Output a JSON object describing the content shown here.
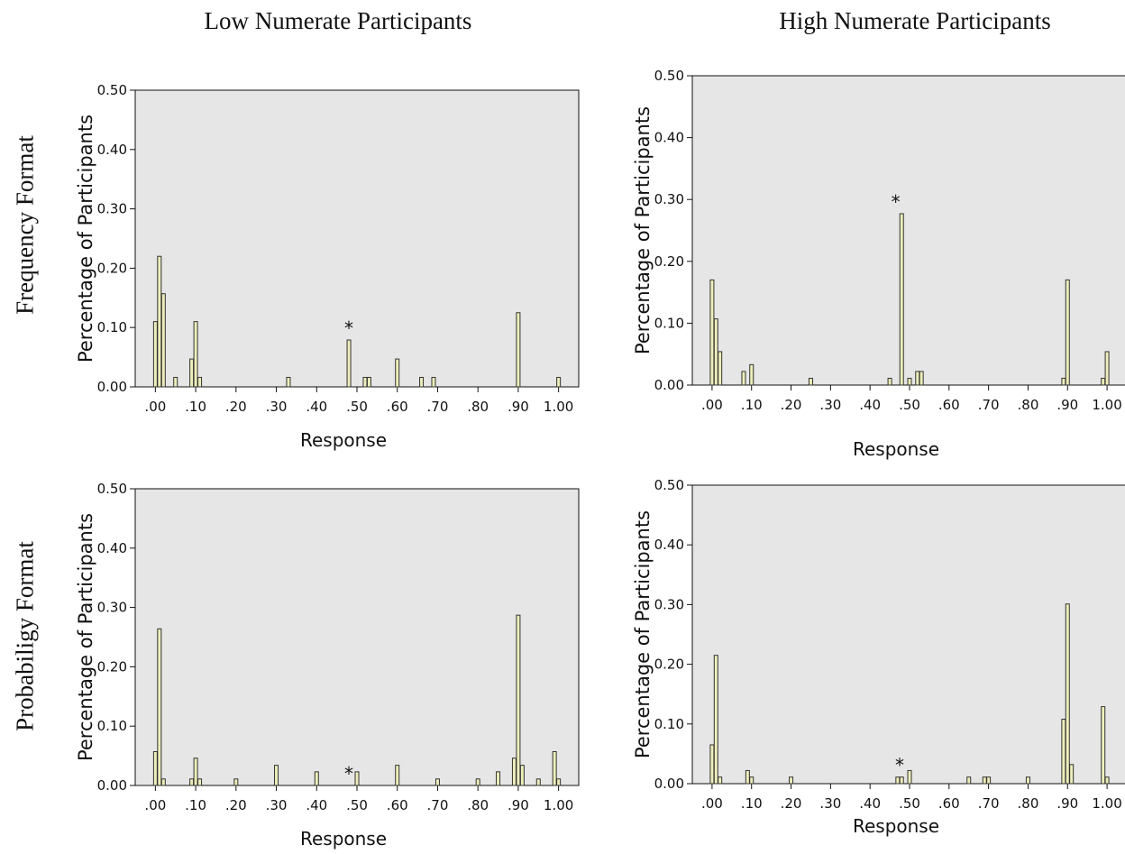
{
  "columns": [
    "Low Numerate Participants",
    "High Numerate Participants"
  ],
  "rows": [
    "Frequency Format",
    "Probabiligy Format"
  ],
  "colors": {
    "bar_fill": "#eeeebb",
    "bar_stroke": "#333333",
    "plot_bg": "#e6e6e6"
  },
  "marker": "*",
  "chart_data": [
    {
      "type": "bar",
      "title": "",
      "column": "Low Numerate Participants",
      "row": "Frequency Format",
      "xlabel": "Response",
      "ylabel": "Percentage of Participants",
      "xlim": [
        -0.05,
        1.05
      ],
      "ylim": [
        0,
        0.5
      ],
      "xticks": [
        ".00",
        ".10",
        ".20",
        ".30",
        ".40",
        ".50",
        ".60",
        ".70",
        ".80",
        ".90",
        "1.00"
      ],
      "yticks": [
        "0.00",
        "0.10",
        "0.20",
        "0.30",
        "0.40",
        "0.50"
      ],
      "grid": false,
      "marker_x": 0.48,
      "x": [
        0.0,
        0.01,
        0.02,
        0.05,
        0.09,
        0.1,
        0.11,
        0.33,
        0.48,
        0.52,
        0.53,
        0.6,
        0.66,
        0.69,
        0.9,
        1.0
      ],
      "values": [
        0.11,
        0.22,
        0.157,
        0.016,
        0.047,
        0.11,
        0.016,
        0.016,
        0.079,
        0.016,
        0.016,
        0.047,
        0.016,
        0.016,
        0.125,
        0.016
      ]
    },
    {
      "type": "bar",
      "title": "",
      "column": "High Numerate Participants",
      "row": "Frequency Format",
      "xlabel": "Response",
      "ylabel": "Percentage of Participants",
      "xlim": [
        -0.05,
        1.05
      ],
      "ylim": [
        0,
        0.5
      ],
      "xticks": [
        ".00",
        ".10",
        ".20",
        ".30",
        ".40",
        ".50",
        ".60",
        ".70",
        ".80",
        ".90",
        "1.00"
      ],
      "yticks": [
        "0.00",
        "0.10",
        "0.20",
        "0.30",
        "0.40",
        "0.50"
      ],
      "grid": false,
      "marker_x": 0.465,
      "x": [
        0.0,
        0.01,
        0.02,
        0.08,
        0.1,
        0.25,
        0.45,
        0.48,
        0.5,
        0.52,
        0.53,
        0.89,
        0.9,
        0.99,
        1.0
      ],
      "values": [
        0.17,
        0.107,
        0.054,
        0.022,
        0.033,
        0.011,
        0.011,
        0.277,
        0.011,
        0.022,
        0.022,
        0.011,
        0.17,
        0.011,
        0.054
      ]
    },
    {
      "type": "bar",
      "title": "",
      "column": "Low Numerate Participants",
      "row": "Probabiligy Format",
      "xlabel": "Response",
      "ylabel": "Percentage of Participants",
      "xlim": [
        -0.05,
        1.05
      ],
      "ylim": [
        0,
        0.5
      ],
      "xticks": [
        ".00",
        ".10",
        ".20",
        ".30",
        ".40",
        ".50",
        ".60",
        ".70",
        ".80",
        ".90",
        "1.00"
      ],
      "yticks": [
        "0.00",
        "0.10",
        "0.20",
        "0.30",
        "0.40",
        "0.50"
      ],
      "grid": false,
      "marker_x": 0.48,
      "x": [
        0.0,
        0.01,
        0.02,
        0.09,
        0.1,
        0.11,
        0.2,
        0.3,
        0.4,
        0.5,
        0.6,
        0.7,
        0.8,
        0.85,
        0.89,
        0.9,
        0.91,
        0.95,
        0.99,
        1.0
      ],
      "values": [
        0.057,
        0.264,
        0.011,
        0.011,
        0.046,
        0.011,
        0.011,
        0.034,
        0.023,
        0.023,
        0.034,
        0.011,
        0.011,
        0.023,
        0.046,
        0.287,
        0.034,
        0.011,
        0.057,
        0.011
      ]
    },
    {
      "type": "bar",
      "title": "",
      "column": "High Numerate Participants",
      "row": "Probabiligy Format",
      "xlabel": "Response",
      "ylabel": "Percentage of Participants",
      "xlim": [
        -0.05,
        1.05
      ],
      "ylim": [
        0,
        0.5
      ],
      "xticks": [
        ".00",
        ".10",
        ".20",
        ".30",
        ".40",
        ".50",
        ".60",
        ".70",
        ".80",
        ".90",
        "1.00"
      ],
      "yticks": [
        "0.00",
        "0.10",
        "0.20",
        "0.30",
        "0.40",
        "0.50"
      ],
      "grid": false,
      "marker_x": 0.475,
      "x": [
        0.0,
        0.01,
        0.02,
        0.09,
        0.1,
        0.2,
        0.47,
        0.48,
        0.5,
        0.65,
        0.69,
        0.7,
        0.8,
        0.89,
        0.9,
        0.91,
        0.99,
        1.0
      ],
      "values": [
        0.065,
        0.215,
        0.011,
        0.022,
        0.011,
        0.011,
        0.011,
        0.011,
        0.022,
        0.011,
        0.011,
        0.011,
        0.011,
        0.108,
        0.301,
        0.032,
        0.129,
        0.011
      ]
    }
  ]
}
